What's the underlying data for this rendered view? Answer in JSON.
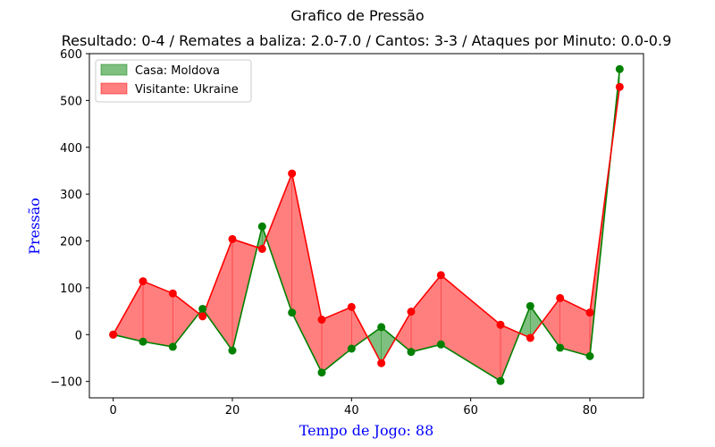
{
  "chart_data": {
    "type": "line",
    "title": "Grafico de Pressão",
    "subtitle": "Resultado: 0-4 / Remates a baliza: 2.0-7.0 / Cantos: 3-3 / Ataques por Minuto: 0.0-0.9",
    "xlabel": "Tempo de Jogo: 88",
    "ylabel": "Pressão",
    "xlim": [
      -4,
      89
    ],
    "ylim": [
      -135,
      600
    ],
    "x_ticks": [
      0,
      20,
      40,
      60,
      80
    ],
    "y_ticks": [
      -100,
      0,
      100,
      200,
      300,
      400,
      500,
      600
    ],
    "x_tick_labels": [
      "0",
      "20",
      "40",
      "60",
      "80"
    ],
    "y_tick_labels": [
      "−100",
      "0",
      "100",
      "200",
      "300",
      "400",
      "500",
      "600"
    ],
    "grid": false,
    "legend_position": "top-left",
    "x": [
      0,
      5,
      10,
      15,
      20,
      25,
      30,
      35,
      40,
      45,
      50,
      55,
      65,
      70,
      75,
      80,
      85
    ],
    "series": [
      {
        "name": "Casa: Moldova",
        "color": "#008000",
        "fill_color": "#008000",
        "values": [
          0,
          -15,
          -26,
          55,
          -34,
          231,
          47,
          -81,
          -30,
          16,
          -37,
          -21,
          -99,
          61,
          -28,
          -46,
          567
        ]
      },
      {
        "name": "Visitante: Ukraine",
        "color": "#ff0000",
        "fill_color": "#ff0000",
        "values": [
          0,
          114,
          88,
          39,
          204,
          183,
          344,
          32,
          59,
          -61,
          49,
          127,
          21,
          -7,
          78,
          47,
          529
        ]
      }
    ],
    "colors": {
      "xlabel": "#0000ff",
      "ylabel": "#0000ff"
    }
  }
}
